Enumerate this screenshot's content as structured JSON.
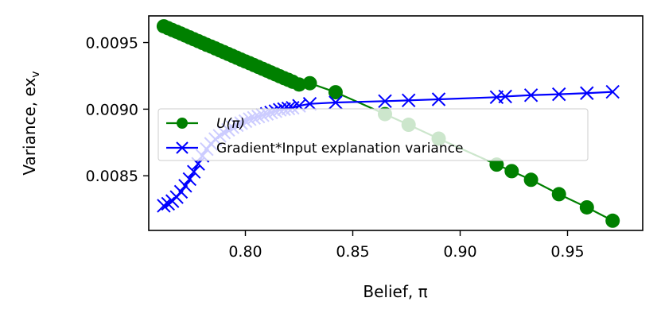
{
  "chart_data": {
    "type": "line",
    "xlabel": "Belief, π",
    "ylabel": "Variance, ex",
    "ylabel_sub": "v",
    "xlim": [
      0.755,
      0.985
    ],
    "ylim": [
      0.00809,
      0.0097
    ],
    "xticks": [
      0.8,
      0.85,
      0.9,
      0.95
    ],
    "xtick_labels": [
      "0.80",
      "0.85",
      "0.90",
      "0.95"
    ],
    "yticks": [
      0.0085,
      0.009,
      0.0095
    ],
    "ytick_labels": [
      "0.0085",
      "0.0090",
      "0.0095"
    ],
    "legend_position": "center-left",
    "series": [
      {
        "name": "U(π)",
        "name_main": "U(",
        "name_italic": "π",
        "name_end": ")",
        "color": "#008000",
        "marker": "circle",
        "x": [
          0.762,
          0.764,
          0.766,
          0.768,
          0.77,
          0.772,
          0.774,
          0.776,
          0.778,
          0.78,
          0.782,
          0.784,
          0.786,
          0.788,
          0.79,
          0.792,
          0.794,
          0.796,
          0.798,
          0.8,
          0.802,
          0.804,
          0.806,
          0.808,
          0.81,
          0.812,
          0.814,
          0.816,
          0.818,
          0.82,
          0.822,
          0.825,
          0.83,
          0.842,
          0.865,
          0.876,
          0.89,
          0.917,
          0.924,
          0.933,
          0.946,
          0.959,
          0.971
        ],
        "y": [
          0.009622,
          0.009608,
          0.009594,
          0.009581,
          0.009567,
          0.009553,
          0.009539,
          0.009525,
          0.009511,
          0.009497,
          0.009483,
          0.00947,
          0.009456,
          0.009442,
          0.009428,
          0.009414,
          0.0094,
          0.009386,
          0.009372,
          0.009358,
          0.009345,
          0.009331,
          0.009317,
          0.009303,
          0.009289,
          0.009275,
          0.009261,
          0.009247,
          0.009233,
          0.00922,
          0.009206,
          0.009185,
          0.009195,
          0.009127,
          0.008963,
          0.008883,
          0.008779,
          0.008584,
          0.008535,
          0.00847,
          0.008362,
          0.008263,
          0.008163
        ]
      },
      {
        "name": "Gradient*Input explanation variance",
        "color": "#0000ff",
        "marker": "x",
        "x": [
          0.762,
          0.764,
          0.766,
          0.768,
          0.77,
          0.772,
          0.774,
          0.776,
          0.778,
          0.78,
          0.782,
          0.784,
          0.786,
          0.788,
          0.79,
          0.792,
          0.794,
          0.796,
          0.798,
          0.8,
          0.802,
          0.804,
          0.806,
          0.808,
          0.81,
          0.812,
          0.814,
          0.816,
          0.818,
          0.82,
          0.822,
          0.825,
          0.83,
          0.842,
          0.865,
          0.876,
          0.89,
          0.917,
          0.921,
          0.933,
          0.946,
          0.959,
          0.971
        ],
        "y": [
          0.008275,
          0.00829,
          0.00831,
          0.00834,
          0.00838,
          0.008425,
          0.008475,
          0.00853,
          0.00859,
          0.00865,
          0.0087,
          0.00874,
          0.008775,
          0.0088,
          0.008825,
          0.008845,
          0.008865,
          0.00888,
          0.008895,
          0.00891,
          0.008925,
          0.008935,
          0.008945,
          0.008955,
          0.008965,
          0.008975,
          0.008985,
          0.008995,
          0.009,
          0.009005,
          0.00901,
          0.009025,
          0.00904,
          0.00905,
          0.00906,
          0.009066,
          0.009074,
          0.00909,
          0.009095,
          0.009105,
          0.009112,
          0.00912,
          0.00913
        ]
      }
    ]
  }
}
